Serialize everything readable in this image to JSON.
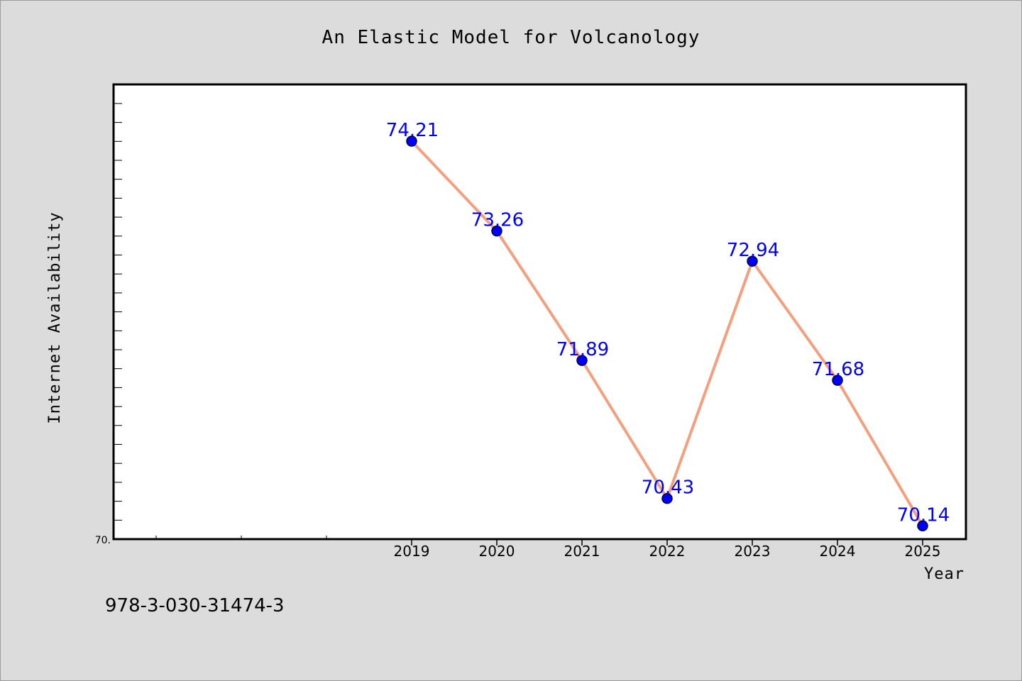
{
  "chart_data": {
    "type": "line",
    "title": "An Elastic Model for Volcanology",
    "xlabel": "Year",
    "ylabel": "Internet Availability",
    "x": [
      "2019",
      "2020",
      "2021",
      "2022",
      "2023",
      "2024",
      "2025"
    ],
    "series": [
      {
        "values": [
          74.21,
          73.26,
          71.89,
          70.43,
          72.94,
          71.68,
          70.14
        ],
        "labels": [
          "74.21",
          "73.26",
          "71.89",
          "70.43",
          "72.94",
          "71.68",
          "70.14"
        ]
      }
    ],
    "ylim": [
      70.0,
      74.81
    ],
    "y_tick_label": "70.",
    "grid": false,
    "legend": "none",
    "colors": {
      "line": "#f4a07e",
      "marker": "#0000ff",
      "marker_edge": "#000033",
      "data_label": "#0000ff",
      "plot_bg": "#ffffff",
      "page_bg": "#dcdcdc"
    }
  },
  "footer": {
    "isbn": "978-3-030-31474-3"
  }
}
